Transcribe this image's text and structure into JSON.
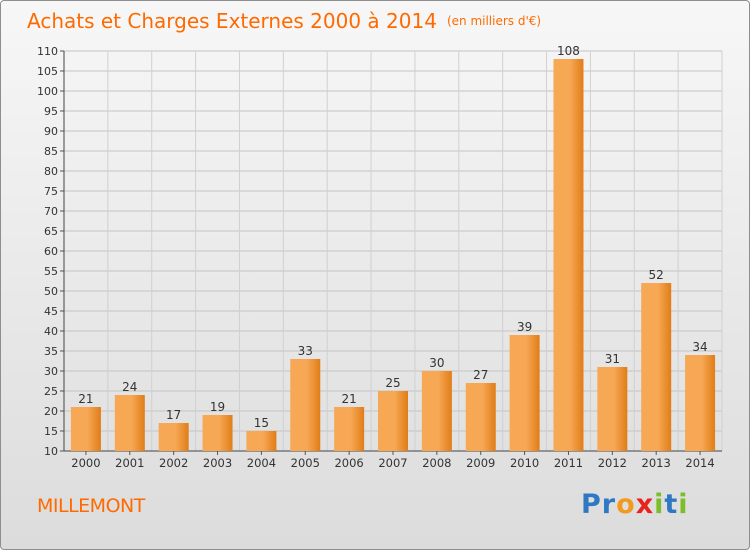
{
  "header": {
    "title": "Achats et Charges Externes 2000 à 2014",
    "unit": "(en milliers d'€)"
  },
  "footer": {
    "city": "MILLEMONT",
    "logo_letters": [
      {
        "ch": "P",
        "color": "#2f78c4"
      },
      {
        "ch": "r",
        "color": "#2f78c4"
      },
      {
        "ch": "o",
        "color": "#f29a1f"
      },
      {
        "ch": "x",
        "color": "#e8231b"
      },
      {
        "ch": "i",
        "color": "#7cbd2b"
      },
      {
        "ch": "t",
        "color": "#2f78c4"
      },
      {
        "ch": "i",
        "color": "#7cbd2b"
      }
    ]
  },
  "colors": {
    "title": "#ff6a00",
    "bar_light": "#f7a855",
    "bar_dark": "#e07d17"
  },
  "chart_data": {
    "type": "bar",
    "title": "Achats et Charges Externes 2000 à 2014",
    "subtitle": "(en milliers d'€)",
    "categories": [
      "2000",
      "2001",
      "2002",
      "2003",
      "2004",
      "2005",
      "2006",
      "2007",
      "2008",
      "2009",
      "2010",
      "2011",
      "2012",
      "2013",
      "2014"
    ],
    "values": [
      21,
      24,
      17,
      19,
      15,
      33,
      21,
      25,
      30,
      27,
      39,
      108,
      31,
      52,
      34
    ],
    "ylim": [
      10,
      110
    ],
    "yticks": [
      10,
      15,
      20,
      25,
      30,
      35,
      40,
      45,
      50,
      55,
      60,
      65,
      70,
      75,
      80,
      85,
      90,
      95,
      100,
      105,
      110
    ],
    "grid": true,
    "xlabel": "",
    "ylabel": ""
  }
}
